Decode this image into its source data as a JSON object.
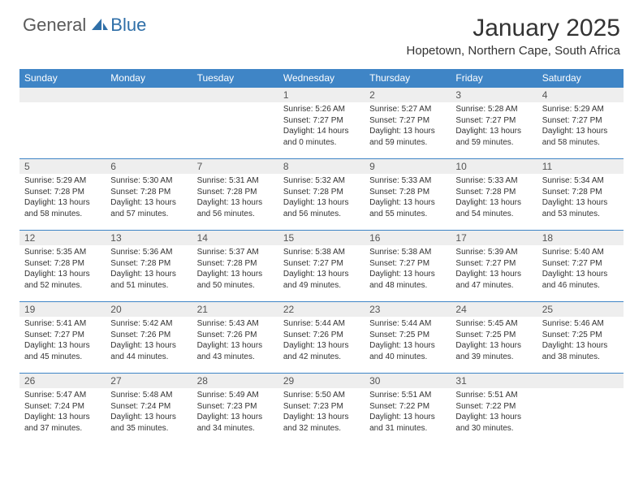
{
  "brand": {
    "part1": "General",
    "part2": "Blue"
  },
  "title": "January 2025",
  "location": "Hopetown, Northern Cape, South Africa",
  "colors": {
    "header_bar": "#3f85c6",
    "header_text": "#ffffff",
    "daynum_bg": "#eeeeee",
    "row_rule": "#3f85c6",
    "body_text": "#333333",
    "logo_gray": "#5a5a5a",
    "logo_blue": "#2f6fa8"
  },
  "weekdays": [
    "Sunday",
    "Monday",
    "Tuesday",
    "Wednesday",
    "Thursday",
    "Friday",
    "Saturday"
  ],
  "weeks": [
    [
      null,
      null,
      null,
      {
        "n": "1",
        "sr": "Sunrise: 5:26 AM",
        "ss": "Sunset: 7:27 PM",
        "dl": "Daylight: 14 hours and 0 minutes."
      },
      {
        "n": "2",
        "sr": "Sunrise: 5:27 AM",
        "ss": "Sunset: 7:27 PM",
        "dl": "Daylight: 13 hours and 59 minutes."
      },
      {
        "n": "3",
        "sr": "Sunrise: 5:28 AM",
        "ss": "Sunset: 7:27 PM",
        "dl": "Daylight: 13 hours and 59 minutes."
      },
      {
        "n": "4",
        "sr": "Sunrise: 5:29 AM",
        "ss": "Sunset: 7:27 PM",
        "dl": "Daylight: 13 hours and 58 minutes."
      }
    ],
    [
      {
        "n": "5",
        "sr": "Sunrise: 5:29 AM",
        "ss": "Sunset: 7:28 PM",
        "dl": "Daylight: 13 hours and 58 minutes."
      },
      {
        "n": "6",
        "sr": "Sunrise: 5:30 AM",
        "ss": "Sunset: 7:28 PM",
        "dl": "Daylight: 13 hours and 57 minutes."
      },
      {
        "n": "7",
        "sr": "Sunrise: 5:31 AM",
        "ss": "Sunset: 7:28 PM",
        "dl": "Daylight: 13 hours and 56 minutes."
      },
      {
        "n": "8",
        "sr": "Sunrise: 5:32 AM",
        "ss": "Sunset: 7:28 PM",
        "dl": "Daylight: 13 hours and 56 minutes."
      },
      {
        "n": "9",
        "sr": "Sunrise: 5:33 AM",
        "ss": "Sunset: 7:28 PM",
        "dl": "Daylight: 13 hours and 55 minutes."
      },
      {
        "n": "10",
        "sr": "Sunrise: 5:33 AM",
        "ss": "Sunset: 7:28 PM",
        "dl": "Daylight: 13 hours and 54 minutes."
      },
      {
        "n": "11",
        "sr": "Sunrise: 5:34 AM",
        "ss": "Sunset: 7:28 PM",
        "dl": "Daylight: 13 hours and 53 minutes."
      }
    ],
    [
      {
        "n": "12",
        "sr": "Sunrise: 5:35 AM",
        "ss": "Sunset: 7:28 PM",
        "dl": "Daylight: 13 hours and 52 minutes."
      },
      {
        "n": "13",
        "sr": "Sunrise: 5:36 AM",
        "ss": "Sunset: 7:28 PM",
        "dl": "Daylight: 13 hours and 51 minutes."
      },
      {
        "n": "14",
        "sr": "Sunrise: 5:37 AM",
        "ss": "Sunset: 7:28 PM",
        "dl": "Daylight: 13 hours and 50 minutes."
      },
      {
        "n": "15",
        "sr": "Sunrise: 5:38 AM",
        "ss": "Sunset: 7:27 PM",
        "dl": "Daylight: 13 hours and 49 minutes."
      },
      {
        "n": "16",
        "sr": "Sunrise: 5:38 AM",
        "ss": "Sunset: 7:27 PM",
        "dl": "Daylight: 13 hours and 48 minutes."
      },
      {
        "n": "17",
        "sr": "Sunrise: 5:39 AM",
        "ss": "Sunset: 7:27 PM",
        "dl": "Daylight: 13 hours and 47 minutes."
      },
      {
        "n": "18",
        "sr": "Sunrise: 5:40 AM",
        "ss": "Sunset: 7:27 PM",
        "dl": "Daylight: 13 hours and 46 minutes."
      }
    ],
    [
      {
        "n": "19",
        "sr": "Sunrise: 5:41 AM",
        "ss": "Sunset: 7:27 PM",
        "dl": "Daylight: 13 hours and 45 minutes."
      },
      {
        "n": "20",
        "sr": "Sunrise: 5:42 AM",
        "ss": "Sunset: 7:26 PM",
        "dl": "Daylight: 13 hours and 44 minutes."
      },
      {
        "n": "21",
        "sr": "Sunrise: 5:43 AM",
        "ss": "Sunset: 7:26 PM",
        "dl": "Daylight: 13 hours and 43 minutes."
      },
      {
        "n": "22",
        "sr": "Sunrise: 5:44 AM",
        "ss": "Sunset: 7:26 PM",
        "dl": "Daylight: 13 hours and 42 minutes."
      },
      {
        "n": "23",
        "sr": "Sunrise: 5:44 AM",
        "ss": "Sunset: 7:25 PM",
        "dl": "Daylight: 13 hours and 40 minutes."
      },
      {
        "n": "24",
        "sr": "Sunrise: 5:45 AM",
        "ss": "Sunset: 7:25 PM",
        "dl": "Daylight: 13 hours and 39 minutes."
      },
      {
        "n": "25",
        "sr": "Sunrise: 5:46 AM",
        "ss": "Sunset: 7:25 PM",
        "dl": "Daylight: 13 hours and 38 minutes."
      }
    ],
    [
      {
        "n": "26",
        "sr": "Sunrise: 5:47 AM",
        "ss": "Sunset: 7:24 PM",
        "dl": "Daylight: 13 hours and 37 minutes."
      },
      {
        "n": "27",
        "sr": "Sunrise: 5:48 AM",
        "ss": "Sunset: 7:24 PM",
        "dl": "Daylight: 13 hours and 35 minutes."
      },
      {
        "n": "28",
        "sr": "Sunrise: 5:49 AM",
        "ss": "Sunset: 7:23 PM",
        "dl": "Daylight: 13 hours and 34 minutes."
      },
      {
        "n": "29",
        "sr": "Sunrise: 5:50 AM",
        "ss": "Sunset: 7:23 PM",
        "dl": "Daylight: 13 hours and 32 minutes."
      },
      {
        "n": "30",
        "sr": "Sunrise: 5:51 AM",
        "ss": "Sunset: 7:22 PM",
        "dl": "Daylight: 13 hours and 31 minutes."
      },
      {
        "n": "31",
        "sr": "Sunrise: 5:51 AM",
        "ss": "Sunset: 7:22 PM",
        "dl": "Daylight: 13 hours and 30 minutes."
      },
      null
    ]
  ]
}
